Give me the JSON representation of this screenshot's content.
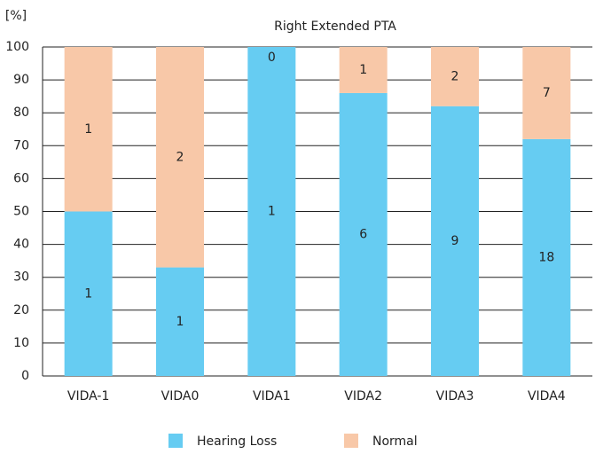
{
  "chart_data": {
    "type": "bar",
    "stacked": true,
    "title": "Right Extended PTA",
    "y_label": "[%]",
    "categories": [
      "VIDA-1",
      "VIDA0",
      "VIDA1",
      "VIDA2",
      "VIDA3",
      "VIDA4"
    ],
    "series": [
      {
        "name": "Hearing Loss",
        "color": "#66ccf2",
        "values": [
          50,
          33,
          100,
          86,
          82,
          72
        ],
        "counts": [
          1,
          1,
          1,
          6,
          9,
          18
        ]
      },
      {
        "name": "Normal",
        "color": "#f8c8a8",
        "values": [
          50,
          67,
          0,
          14,
          18,
          28
        ],
        "counts": [
          1,
          2,
          0,
          1,
          2,
          7
        ]
      }
    ],
    "ylim": [
      0,
      100
    ],
    "yticks": [
      0,
      10,
      20,
      30,
      40,
      50,
      60,
      70,
      80,
      90,
      100
    ],
    "grid": true
  }
}
